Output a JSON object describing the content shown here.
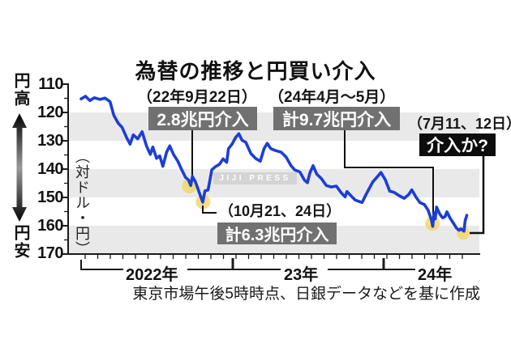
{
  "title": "為替の推移と円買い介入",
  "annotations": {
    "sep2022": {
      "date": "（22年9月22日）",
      "badge": "2.8兆円介入"
    },
    "oct2022": {
      "date": "（10月21、24日）",
      "badge": "計6.3兆円介入"
    },
    "apr2024": {
      "date": "（24年4月～5月）",
      "badge": "計9.7兆円介入"
    },
    "jul2024": {
      "date": "（7月11、12日）",
      "badge": "介入か?"
    }
  },
  "y_axis": {
    "high_label": "円高",
    "low_label": "円安",
    "unit_label": "（対ドル・円）",
    "ticks": [
      "110",
      "120",
      "130",
      "140",
      "150",
      "160",
      "170"
    ]
  },
  "x_axis": {
    "years": [
      "2022年",
      "23年",
      "24年"
    ]
  },
  "watermark": "JIJI PRESS",
  "footer": "東京市場午後5時時点、日銀データなどを基に作成",
  "colors": {
    "line_blue": "#1c3ed6",
    "band_gray": "#e9e9e9",
    "badge_gray": "#717171",
    "badge_black": "#0d0d0d",
    "highlight_yellow": "#f3d463",
    "axis_black": "#1a1a1a"
  },
  "chart_data": {
    "type": "line",
    "title": "為替の推移と円買い介入",
    "ylabel": "対ドル・円",
    "y_axis_inverted": true,
    "ylim": [
      110,
      170
    ],
    "x_range": [
      "2022-01",
      "2024-07"
    ],
    "x_unit": "months_since_2022_01",
    "grid": "alternating horizontal bands 120-130, 140-150, 160-170",
    "series": [
      {
        "name": "USD/JPY 東京市場午後5時時点",
        "points": [
          [
            0,
            115.2
          ],
          [
            0.35,
            114.3
          ],
          [
            0.7,
            115.8
          ],
          [
            1.05,
            114.8
          ],
          [
            1.5,
            115.4
          ],
          [
            1.9,
            114.9
          ],
          [
            2.3,
            116.2
          ],
          [
            2.6,
            121.0
          ],
          [
            2.95,
            123.8
          ],
          [
            3.25,
            125.2
          ],
          [
            3.6,
            128.7
          ],
          [
            3.9,
            131.2
          ],
          [
            4.15,
            127.9
          ],
          [
            4.5,
            129.3
          ],
          [
            4.85,
            126.8
          ],
          [
            5.2,
            131.8
          ],
          [
            5.5,
            134.8
          ],
          [
            5.7,
            132.2
          ],
          [
            6.0,
            136.2
          ],
          [
            6.25,
            135.3
          ],
          [
            6.5,
            139.0
          ],
          [
            6.8,
            134.0
          ],
          [
            7.05,
            131.8
          ],
          [
            7.35,
            134.8
          ],
          [
            7.7,
            137.3
          ],
          [
            8.0,
            140.2
          ],
          [
            8.3,
            142.9
          ],
          [
            8.55,
            143.9
          ],
          [
            8.72,
            145.8
          ],
          [
            8.85,
            142.6
          ],
          [
            9.1,
            144.5
          ],
          [
            9.4,
            148.3
          ],
          [
            9.68,
            151.7
          ],
          [
            9.85,
            147.7
          ],
          [
            10.1,
            147.4
          ],
          [
            10.4,
            140.2
          ],
          [
            10.7,
            139.1
          ],
          [
            11.0,
            138.3
          ],
          [
            11.3,
            136.4
          ],
          [
            11.58,
            137.6
          ],
          [
            11.72,
            132.8
          ],
          [
            12.0,
            131.2
          ],
          [
            12.3,
            128.8
          ],
          [
            12.55,
            127.5
          ],
          [
            12.8,
            129.8
          ],
          [
            13.1,
            130.5
          ],
          [
            13.5,
            134.5
          ],
          [
            13.9,
            136.3
          ],
          [
            14.25,
            137.2
          ],
          [
            14.55,
            132.8
          ],
          [
            14.8,
            130.9
          ],
          [
            15.1,
            132.8
          ],
          [
            15.5,
            133.5
          ],
          [
            15.9,
            134.0
          ],
          [
            16.3,
            135.7
          ],
          [
            16.7,
            138.8
          ],
          [
            17.0,
            140.3
          ],
          [
            17.4,
            141.0
          ],
          [
            17.75,
            143.8
          ],
          [
            18.0,
            144.8
          ],
          [
            18.2,
            141.3
          ],
          [
            18.45,
            138.8
          ],
          [
            18.75,
            141.8
          ],
          [
            19.1,
            143.3
          ],
          [
            19.5,
            145.8
          ],
          [
            19.9,
            146.3
          ],
          [
            20.3,
            146.0
          ],
          [
            20.7,
            148.4
          ],
          [
            21.0,
            149.8
          ],
          [
            21.15,
            147.9
          ],
          [
            21.5,
            149.6
          ],
          [
            21.8,
            150.9
          ],
          [
            22.1,
            151.4
          ],
          [
            22.35,
            151.8
          ],
          [
            22.6,
            149.5
          ],
          [
            22.85,
            147.4
          ],
          [
            23.2,
            144.5
          ],
          [
            23.5,
            143.0
          ],
          [
            23.85,
            141.2
          ],
          [
            24.2,
            143.8
          ],
          [
            24.55,
            147.8
          ],
          [
            24.9,
            148.2
          ],
          [
            25.3,
            149.4
          ],
          [
            25.7,
            150.3
          ],
          [
            26.05,
            149.0
          ],
          [
            26.3,
            147.3
          ],
          [
            26.65,
            150.0
          ],
          [
            26.95,
            151.8
          ],
          [
            27.3,
            152.5
          ],
          [
            27.6,
            154.5
          ],
          [
            27.85,
            157.8
          ],
          [
            27.97,
            160.2
          ],
          [
            28.07,
            155.4
          ],
          [
            28.17,
            157.6
          ],
          [
            28.27,
            153.4
          ],
          [
            28.5,
            155.7
          ],
          [
            28.75,
            157.2
          ],
          [
            28.95,
            156.8
          ],
          [
            29.1,
            155.1
          ],
          [
            29.35,
            157.3
          ],
          [
            29.6,
            159.0
          ],
          [
            29.85,
            160.8
          ],
          [
            30.05,
            161.6
          ],
          [
            30.2,
            161.1
          ],
          [
            30.35,
            161.6
          ],
          [
            30.45,
            161.9
          ],
          [
            30.55,
            158.2
          ],
          [
            30.68,
            156.3
          ]
        ]
      }
    ],
    "interventions": [
      {
        "label": "2.8兆円介入",
        "date": "22年9月22日",
        "m": 8.6,
        "v": 146.0,
        "r": 9
      },
      {
        "label": "計6.3兆円介入",
        "date": "10月21、24日",
        "m": 9.7,
        "v": 151.6,
        "r": 9
      },
      {
        "label": "計9.7兆円介入",
        "date": "24年4月～5月",
        "m": 27.95,
        "v": 159.2,
        "r": 9
      },
      {
        "label": "介入か?",
        "date": "7月11、12日",
        "m": 30.4,
        "v": 162.7,
        "r": 8
      }
    ]
  }
}
